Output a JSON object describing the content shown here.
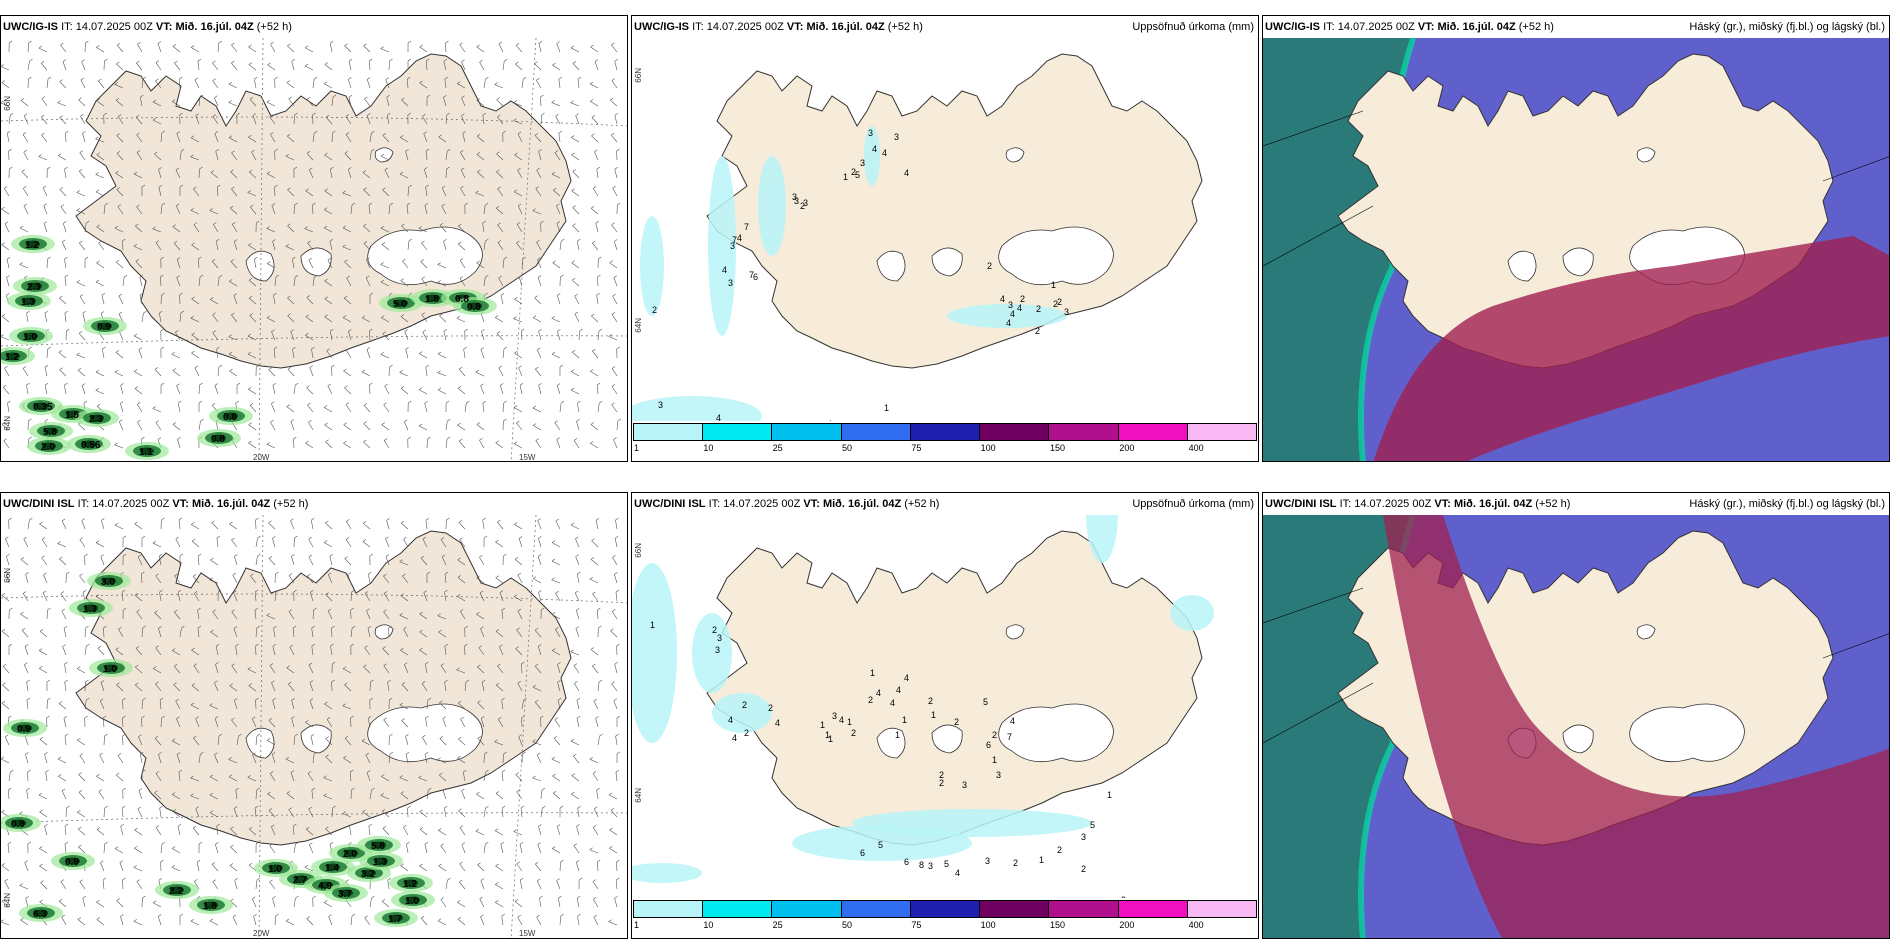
{
  "panels": [
    {
      "model": "UWC/IG-IS",
      "it_label": "IT:",
      "it": "14.07.2025 00Z",
      "vt_label": "VT:",
      "vt": "Mið. 16.júl. 04Z",
      "lead": "(+52 h)",
      "right": ""
    },
    {
      "model": "UWC/IG-IS",
      "it_label": "IT:",
      "it": "14.07.2025 00Z",
      "vt_label": "VT:",
      "vt": "Mið. 16.júl. 04Z",
      "lead": "(+52 h)",
      "right": "Uppsöfnuð úrkoma (mm)"
    },
    {
      "model": "UWC/IG-IS",
      "it_label": "IT:",
      "it": "14.07.2025 00Z",
      "vt_label": "VT:",
      "vt": "Mið. 16.júl. 04Z",
      "lead": "(+52 h)",
      "right": "Háský (gr.), miðský (fj.bl.) og lágský (bl.)"
    },
    {
      "model": "UWC/DINI ISL",
      "it_label": "IT:",
      "it": "14.07.2025 00Z",
      "vt_label": "VT:",
      "vt": "Mið. 16.júl. 04Z",
      "lead": "(+52 h)",
      "right": ""
    },
    {
      "model": "UWC/DINI ISL",
      "it_label": "IT:",
      "it": "14.07.2025 00Z",
      "vt_label": "VT:",
      "vt": "Mið. 16.júl. 04Z",
      "lead": "(+52 h)",
      "right": "Uppsöfnuð úrkoma (mm)"
    },
    {
      "model": "UWC/DINI ISL",
      "it_label": "IT:",
      "it": "14.07.2025 00Z",
      "vt_label": "VT:",
      "vt": "Mið. 16.júl. 04Z",
      "lead": "(+52 h)",
      "right": "Háský (gr.), miðský (fj.bl.) og lágský (bl.)"
    }
  ],
  "axes": {
    "lat66": "66N",
    "lat64": "64N",
    "lon20": "20W",
    "lon15": "15W"
  },
  "legend": {
    "ticks": [
      "1",
      "10",
      "25",
      "50",
      "75",
      "100",
      "150",
      "200",
      "400"
    ],
    "colors": [
      "#b8f4f8",
      "#00e8f0",
      "#00c0f0",
      "#2f6cf0",
      "#2020b0",
      "#700060",
      "#b0108c",
      "#f010c0",
      "#f8b8f4"
    ]
  },
  "colors": {
    "land": "#f7ebd9",
    "land_wind": "#f2e6d8",
    "coast": "#333333",
    "cloud_high": "#6060cc",
    "cloud_mid": "#a02050",
    "cloud_low": "#2a7a7a",
    "precip": "#b8f4f8"
  },
  "wind_labels_top": [
    "1.2",
    "1.3",
    "2.3",
    "1.0",
    "0.9",
    "1.2",
    "0.35",
    "1.5",
    "2.3",
    "5.8",
    "2.0",
    "0.56",
    "0.8",
    "0.8",
    "1.1",
    "5.0",
    "1.8",
    "0.8",
    "0.8"
  ],
  "wind_labels_bottom": [
    "3.0",
    "1.3",
    "1.0",
    "0.9",
    "0.9",
    "6.3",
    "0.9",
    "2.2",
    "1.8",
    "1.0",
    "2.7",
    "4.9",
    "3.7",
    "1.4",
    "3.2",
    "2.0",
    "5.8",
    "1.3",
    "1.2",
    "1.0",
    "1.7"
  ],
  "precip_labels_top": [
    "2",
    "3",
    "4",
    "1",
    "3",
    "4",
    "4",
    "3",
    "2",
    "3",
    "1",
    "5",
    "4",
    "7",
    "4",
    "7",
    "3",
    "4",
    "3",
    "7",
    "6",
    "3",
    "3",
    "3",
    "2",
    "2",
    "4",
    "3",
    "4",
    "4",
    "2",
    "2",
    "2",
    "2",
    "1",
    "2",
    "3",
    "4",
    "1"
  ],
  "precip_labels_bottom": [
    "1",
    "2",
    "3",
    "3",
    "2",
    "2",
    "4",
    "4",
    "2",
    "4",
    "1",
    "4",
    "2",
    "4",
    "4",
    "4",
    "2",
    "3",
    "4",
    "1",
    "2",
    "1",
    "1",
    "1",
    "1",
    "1",
    "1",
    "2",
    "5",
    "4",
    "6",
    "7",
    "2",
    "1",
    "3",
    "3",
    "2",
    "2",
    "6",
    "5",
    "6",
    "8",
    "3",
    "5",
    "4",
    "3",
    "2",
    "1",
    "2",
    "3",
    "5",
    "1",
    "2",
    "3",
    "2"
  ]
}
